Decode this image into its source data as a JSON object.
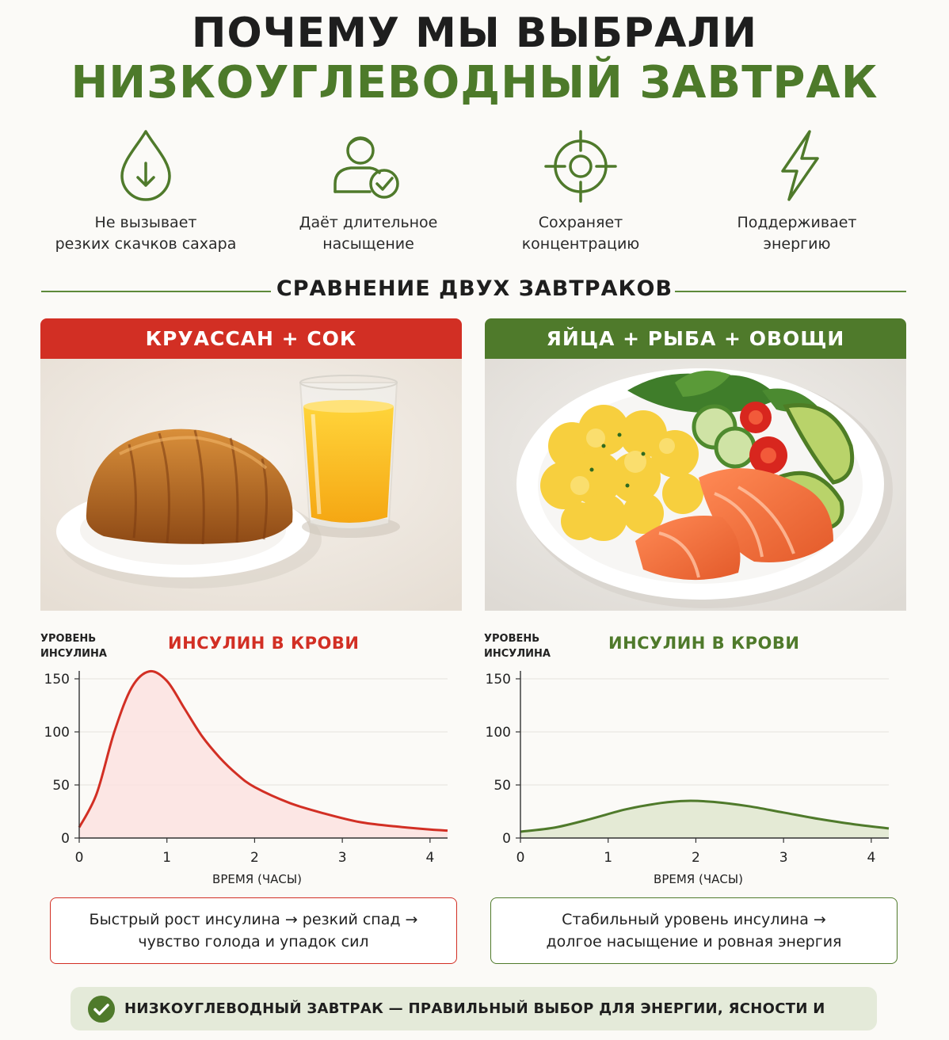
{
  "header": {
    "line1": "ПОЧЕМУ МЫ ВЫБРАЛИ",
    "line2": "НИЗКОУГЛЕВОДНЫЙ ЗАВТРАК"
  },
  "benefits": [
    {
      "icon": "drop-arrow-icon",
      "text": "Не вызывает\nрезких скачков сахара"
    },
    {
      "icon": "person-check-icon",
      "text": "Даёт длительное\nнасыщение"
    },
    {
      "icon": "target-icon",
      "text": "Сохраняет\nконцентрацию"
    },
    {
      "icon": "lightning-icon",
      "text": "Поддерживает\nэнергию"
    }
  ],
  "section_title": "СРАВНЕНИЕ ДВУХ ЗАВТРАКОВ",
  "panels": {
    "left": {
      "title": "КРУАССАН + СОК",
      "note": "Быстрый рост инсулина → резкий спад →\nчувство голода и упадок сил"
    },
    "right": {
      "title": "ЯЙЦА + РЫБА + ОВОЩИ",
      "note": "Стабильный уровень инсулина →\nдолгое насыщение и ровная энергия"
    }
  },
  "colors": {
    "red": "#d22f24",
    "green": "#4f7a2b",
    "green_fill": "#dfe6cf",
    "red_fill": "#fbe2e0"
  },
  "chart_data": [
    {
      "type": "area",
      "title": "ИНСУЛИН В КРОВИ",
      "ylabel": "УРОВЕНЬ\nИНСУЛИНА",
      "xlabel": "ВРЕМЯ (ЧАСЫ)",
      "xlim": [
        0,
        4.2
      ],
      "ylim": [
        0,
        150
      ],
      "xticks": [
        0,
        1,
        2,
        3,
        4
      ],
      "yticks": [
        0,
        50,
        100,
        150
      ],
      "grid": true,
      "series": [
        {
          "x": [
            0,
            0.2,
            0.4,
            0.6,
            0.8,
            1.0,
            1.2,
            1.4,
            1.6,
            1.8,
            2.0,
            2.4,
            2.8,
            3.2,
            3.6,
            4.0,
            4.2
          ],
          "y": [
            10,
            42,
            100,
            142,
            157,
            148,
            122,
            96,
            76,
            60,
            48,
            33,
            23,
            15,
            11,
            8,
            7
          ]
        }
      ]
    },
    {
      "type": "area",
      "title": "ИНСУЛИН В КРОВИ",
      "ylabel": "УРОВЕНЬ\nИНСУЛИНА",
      "xlabel": "ВРЕМЯ (ЧАСЫ)",
      "xlim": [
        0,
        4.2
      ],
      "ylim": [
        0,
        150
      ],
      "xticks": [
        0,
        1,
        2,
        3,
        4
      ],
      "yticks": [
        0,
        50,
        100,
        150
      ],
      "grid": true,
      "series": [
        {
          "x": [
            0,
            0.4,
            0.8,
            1.2,
            1.6,
            1.9,
            2.2,
            2.6,
            3.0,
            3.4,
            3.8,
            4.2
          ],
          "y": [
            6,
            10,
            18,
            27,
            33,
            35,
            34,
            30,
            24,
            18,
            13,
            9
          ]
        }
      ]
    }
  ],
  "footer": {
    "text": "НИЗКОУГЛЕВОДНЫЙ ЗАВТРАК — ПРАВИЛЬНЫЙ ВЫБОР ДЛЯ ЭНЕРГИИ, ЯСНОСТИ И ЗДОРОВЬЯ!"
  }
}
